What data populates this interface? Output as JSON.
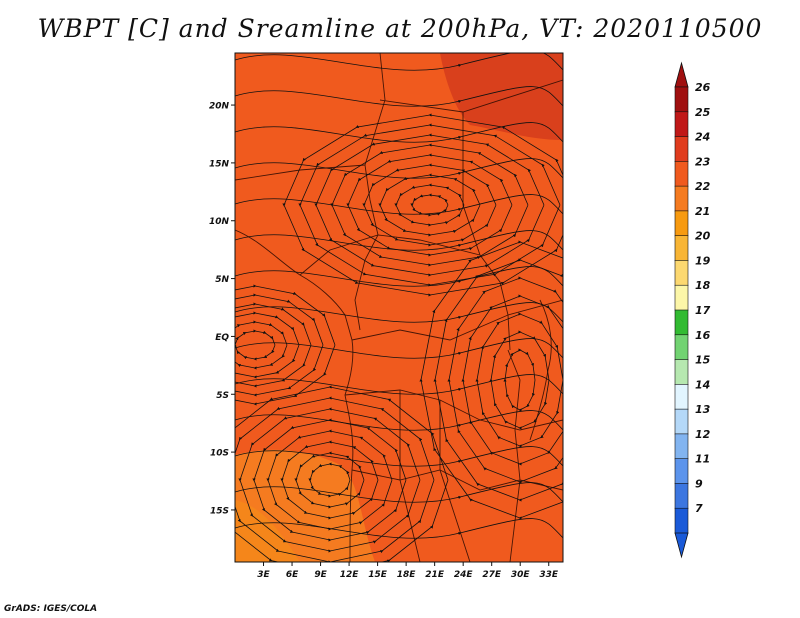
{
  "title": "WBPT [C] and Sreamline at 200hPa, VT: 2020110500",
  "credit": "GrADS: IGES/COLA",
  "map": {
    "lat_labels": [
      "20N",
      "15N",
      "10N",
      "5N",
      "EQ",
      "5S",
      "10S",
      "15S"
    ],
    "lat_values": [
      20,
      15,
      10,
      5,
      0,
      -5,
      -10,
      -15
    ],
    "lon_labels": [
      "3E",
      "6E",
      "9E",
      "12E",
      "15E",
      "18E",
      "21E",
      "24E",
      "27E",
      "30E",
      "33E"
    ],
    "lon_values": [
      3,
      6,
      9,
      12,
      15,
      18,
      21,
      24,
      27,
      30,
      33
    ],
    "lon_range": [
      0,
      34.5
    ],
    "lat_range": [
      -19.5,
      24.5
    ],
    "field_colors": {
      "dominant": "#f05a1e",
      "warm_north": "#d9401c",
      "cool_south": "#f57b20"
    }
  },
  "colorbar": {
    "labels": [
      "26",
      "25",
      "24",
      "23",
      "22",
      "21",
      "20",
      "19",
      "18",
      "17",
      "16",
      "15",
      "14",
      "13",
      "12",
      "11",
      "9",
      "7"
    ],
    "colors": [
      "#a01010",
      "#c01818",
      "#e03c1e",
      "#f05a1e",
      "#f57b20",
      "#f79a10",
      "#f8b535",
      "#fcd870",
      "#fcf6a8",
      "#32bb32",
      "#72d372",
      "#b6e8b0",
      "#e2f5ff",
      "#b4d8f8",
      "#82b4f0",
      "#5c94ec",
      "#3c76e0",
      "#1a5ad8"
    ],
    "top_arrow_color": "#a01010",
    "bottom_arrow_color": "#1a5ad8"
  }
}
